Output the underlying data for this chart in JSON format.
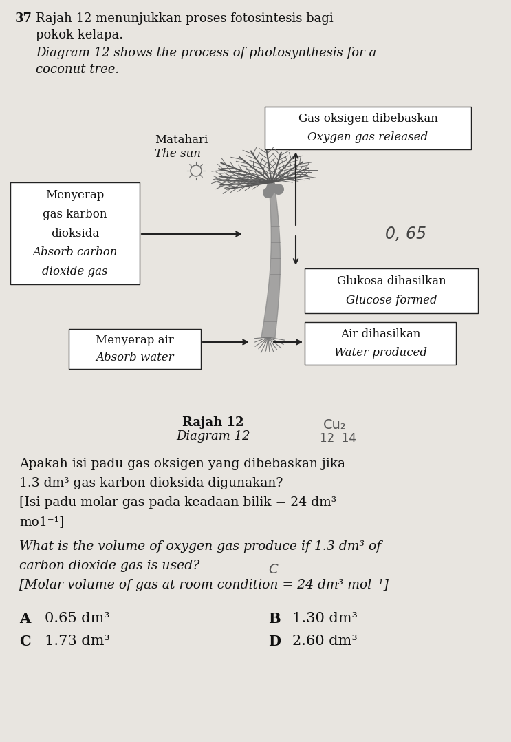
{
  "bg_color": "#e8e5e0",
  "question_number": "37",
  "line1_malay": "Rajah 12 menunjukkan proses fotosintesis bagi",
  "line2_malay": "pokok kelapa.",
  "line1_english": "Diagram 12 shows the process of photosynthesis for a",
  "line2_english": "coconut tree.",
  "label_matahari": "Matahari",
  "label_the_sun": "The sun",
  "box_oxygen_line1": "Gas oksigen dibebaskan",
  "box_oxygen_line2": "Oxygen gas released",
  "box_co2_line1": "Menyerap",
  "box_co2_line2": "gas karbon",
  "box_co2_line3": "dioksida",
  "box_co2_line4": "Absorb carbon",
  "box_co2_line5": "dioxide gas",
  "box_glucose_line1": "Glukosa dihasilkan",
  "box_glucose_line2": "Glucose formed",
  "box_water_abs_line1": "Menyerap air",
  "box_water_abs_line2": "Absorb water",
  "box_water_prod_line1": "Air dihasilkan",
  "box_water_prod_line2": "Water produced",
  "caption_malay": "Rajah 12",
  "caption_english": "Diagram 12",
  "question_malay_1": "Apakah isi padu gas oksigen yang dibebaskan jika",
  "question_malay_2": "1.3 dm³ gas karbon dioksida digunakan?",
  "question_malay_3": "[Isi padu molar gas pada keadaan bilik = 24 dm³",
  "question_malay_4": "mo1⁻¹]",
  "question_eng_1": "What is the volume of oxygen gas produce if 1.3 dm³ of",
  "question_eng_2": "carbon dioxide gas is used?",
  "question_eng_3": "[Molar volume of gas at room condition = 24 dm³ mol⁻¹]",
  "handwritten_065": "0, 65",
  "handwritten_cu2": "Cu₂",
  "handwritten_1214": "12  14"
}
